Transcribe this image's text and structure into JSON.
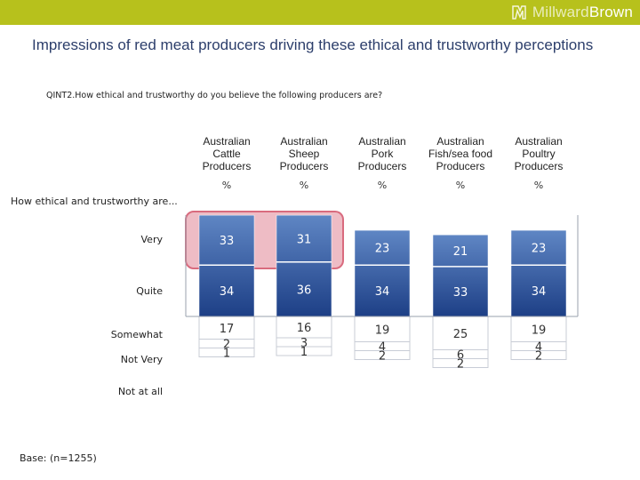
{
  "brand": {
    "prefix": "Millward",
    "suffix": "Brown"
  },
  "title": "Impressions of red meat producers driving these ethical and trustworthy perceptions",
  "question": "QINT2.How ethical and trustworthy do you believe the following producers are?",
  "row_header": "How ethical and trustworthy are...",
  "base": "Base: (n=1255)",
  "colors": {
    "bar_top": "#5f86c4",
    "bar_bottom": "#1d3f86",
    "highlight": "#d96b7e",
    "topbar": "#b7c11c"
  },
  "chart_data": {
    "type": "table",
    "title": "Impressions of red meat producers driving these ethical and trustworthy perceptions",
    "unit_label": "%",
    "columns": [
      [
        "Australian",
        "Cattle",
        "Producers"
      ],
      [
        "Australian",
        "Sheep",
        "Producers"
      ],
      [
        "Australian",
        "Pork",
        "Producers"
      ],
      [
        "Australian",
        "Fish/sea food",
        "Producers"
      ],
      [
        "Australian",
        "Poultry",
        "Producers"
      ]
    ],
    "rows": [
      "Very",
      "Quite",
      "Somewhat",
      "Not Very",
      "Not at all"
    ],
    "values": [
      [
        33,
        31,
        23,
        21,
        23
      ],
      [
        34,
        36,
        34,
        33,
        34
      ],
      [
        17,
        16,
        19,
        25,
        19
      ],
      [
        2,
        3,
        4,
        6,
        4
      ],
      [
        1,
        1,
        2,
        2,
        2
      ]
    ],
    "highlighted": {
      "row": "Very",
      "columns": [
        "Australian Cattle Producers",
        "Australian Sheep Producers"
      ]
    }
  }
}
